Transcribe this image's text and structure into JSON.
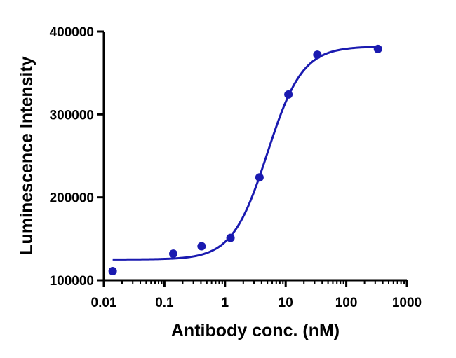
{
  "chart_data": {
    "type": "scatter",
    "title": "",
    "xlabel": "Antibody conc. (nM)",
    "ylabel": "Luminescence Intensity",
    "x_scale": "log",
    "xlim": [
      0.01,
      1000
    ],
    "ylim": [
      100000,
      400000
    ],
    "x_ticks": [
      0.01,
      0.1,
      1,
      10,
      100,
      1000
    ],
    "x_tick_labels": [
      "0.01",
      "0.1",
      "1",
      "10",
      "100",
      "1000"
    ],
    "y_ticks": [
      100000,
      200000,
      300000,
      400000
    ],
    "y_tick_labels": [
      "100000",
      "200000",
      "300000",
      "400000"
    ],
    "grid": false,
    "legend": "none",
    "color": "#1a1ab0",
    "series": [
      {
        "points": [
          {
            "x": 0.014,
            "y": 111000
          },
          {
            "x": 0.14,
            "y": 132000
          },
          {
            "x": 0.41,
            "y": 141000
          },
          {
            "x": 1.23,
            "y": 151000
          },
          {
            "x": 3.7,
            "y": 224000
          },
          {
            "x": 11.1,
            "y": 324000
          },
          {
            "x": 33.3,
            "y": 372000
          },
          {
            "x": 333,
            "y": 379000
          }
        ]
      }
    ],
    "fit_curve": {
      "model": "4PL",
      "bottom": 125000,
      "top": 382000,
      "ec50": 5.0,
      "hill": 1.5
    }
  }
}
